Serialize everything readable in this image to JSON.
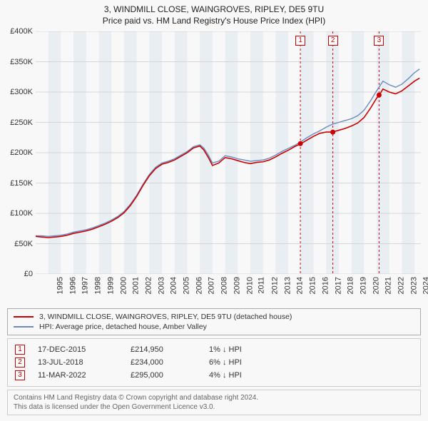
{
  "title_line1": "3, WINDMILL CLOSE, WAINGROVES, RIPLEY, DE5 9TU",
  "title_line2": "Price paid vs. HM Land Registry's House Price Index (HPI)",
  "chart": {
    "type": "line",
    "background_color": "#f8f8f8",
    "grid_color": "#cccccc",
    "band_color": "#d8e2ec",
    "xlim": [
      1995,
      2025.5
    ],
    "ylim": [
      0,
      400000
    ],
    "ytick_step": 50000,
    "ytick_labels": [
      "£0",
      "£50K",
      "£100K",
      "£150K",
      "£200K",
      "£250K",
      "£300K",
      "£350K",
      "£400K"
    ],
    "xticks": [
      1995,
      1996,
      1997,
      1998,
      1999,
      2000,
      2001,
      2002,
      2003,
      2004,
      2005,
      2006,
      2007,
      2008,
      2009,
      2010,
      2011,
      2012,
      2013,
      2014,
      2015,
      2016,
      2017,
      2018,
      2019,
      2020,
      2021,
      2022,
      2023,
      2024,
      2025
    ],
    "series": [
      {
        "name": "hpi",
        "color": "#6a8bc0",
        "width": 1.4,
        "points": [
          [
            1995,
            63000
          ],
          [
            1995.5,
            63000
          ],
          [
            1996,
            62000
          ],
          [
            1996.5,
            63000
          ],
          [
            1997,
            64000
          ],
          [
            1997.5,
            66000
          ],
          [
            1998,
            69000
          ],
          [
            1998.5,
            71000
          ],
          [
            1999,
            73000
          ],
          [
            1999.5,
            76000
          ],
          [
            2000,
            80000
          ],
          [
            2000.5,
            84000
          ],
          [
            2001,
            89000
          ],
          [
            2001.5,
            95000
          ],
          [
            2002,
            103000
          ],
          [
            2002.5,
            115000
          ],
          [
            2003,
            130000
          ],
          [
            2003.5,
            148000
          ],
          [
            2004,
            164000
          ],
          [
            2004.5,
            176000
          ],
          [
            2005,
            183000
          ],
          [
            2005.5,
            186000
          ],
          [
            2006,
            190000
          ],
          [
            2006.5,
            196000
          ],
          [
            2007,
            202000
          ],
          [
            2007.5,
            210000
          ],
          [
            2008,
            213000
          ],
          [
            2008.3,
            208000
          ],
          [
            2008.7,
            195000
          ],
          [
            2009,
            183000
          ],
          [
            2009.5,
            186000
          ],
          [
            2010,
            195000
          ],
          [
            2010.5,
            193000
          ],
          [
            2011,
            190000
          ],
          [
            2011.5,
            188000
          ],
          [
            2012,
            186000
          ],
          [
            2012.5,
            187000
          ],
          [
            2013,
            188000
          ],
          [
            2013.5,
            191000
          ],
          [
            2014,
            196000
          ],
          [
            2014.5,
            202000
          ],
          [
            2015,
            207000
          ],
          [
            2015.5,
            212000
          ],
          [
            2016,
            218000
          ],
          [
            2016.5,
            225000
          ],
          [
            2017,
            231000
          ],
          [
            2017.5,
            236000
          ],
          [
            2018,
            242000
          ],
          [
            2018.5,
            247000
          ],
          [
            2019,
            250000
          ],
          [
            2019.5,
            253000
          ],
          [
            2020,
            256000
          ],
          [
            2020.5,
            261000
          ],
          [
            2021,
            270000
          ],
          [
            2021.5,
            285000
          ],
          [
            2022,
            302000
          ],
          [
            2022.5,
            318000
          ],
          [
            2023,
            312000
          ],
          [
            2023.5,
            308000
          ],
          [
            2024,
            313000
          ],
          [
            2024.5,
            322000
          ],
          [
            2025,
            332000
          ],
          [
            2025.4,
            338000
          ]
        ]
      },
      {
        "name": "property",
        "color": "#cc0000",
        "width": 1.6,
        "points": [
          [
            1995,
            62000
          ],
          [
            1995.5,
            61000
          ],
          [
            1996,
            60000
          ],
          [
            1996.5,
            61000
          ],
          [
            1997,
            62000
          ],
          [
            1997.5,
            64000
          ],
          [
            1998,
            67000
          ],
          [
            1998.5,
            69000
          ],
          [
            1999,
            71000
          ],
          [
            1999.5,
            74000
          ],
          [
            2000,
            78000
          ],
          [
            2000.5,
            82000
          ],
          [
            2001,
            87000
          ],
          [
            2001.5,
            93000
          ],
          [
            2002,
            101000
          ],
          [
            2002.5,
            113000
          ],
          [
            2003,
            128000
          ],
          [
            2003.5,
            146000
          ],
          [
            2004,
            162000
          ],
          [
            2004.5,
            174000
          ],
          [
            2005,
            181000
          ],
          [
            2005.5,
            184000
          ],
          [
            2006,
            188000
          ],
          [
            2006.5,
            194000
          ],
          [
            2007,
            200000
          ],
          [
            2007.5,
            208000
          ],
          [
            2008,
            211000
          ],
          [
            2008.3,
            205000
          ],
          [
            2008.7,
            191000
          ],
          [
            2009,
            179000
          ],
          [
            2009.5,
            183000
          ],
          [
            2010,
            192000
          ],
          [
            2010.5,
            190000
          ],
          [
            2011,
            187000
          ],
          [
            2011.5,
            184000
          ],
          [
            2012,
            182000
          ],
          [
            2012.5,
            184000
          ],
          [
            2013,
            185000
          ],
          [
            2013.5,
            188000
          ],
          [
            2014,
            193000
          ],
          [
            2014.5,
            199000
          ],
          [
            2015,
            204000
          ],
          [
            2015.5,
            210000
          ],
          [
            2016,
            214950
          ],
          [
            2016.5,
            221000
          ],
          [
            2017,
            227000
          ],
          [
            2017.5,
            232000
          ],
          [
            2018,
            234000
          ],
          [
            2018.5,
            234000
          ],
          [
            2019,
            237000
          ],
          [
            2019.5,
            240000
          ],
          [
            2020,
            244000
          ],
          [
            2020.5,
            249000
          ],
          [
            2021,
            258000
          ],
          [
            2021.5,
            273000
          ],
          [
            2022,
            290000
          ],
          [
            2022.2,
            295000
          ],
          [
            2022.5,
            305000
          ],
          [
            2023,
            300000
          ],
          [
            2023.5,
            297000
          ],
          [
            2024,
            302000
          ],
          [
            2024.5,
            310000
          ],
          [
            2025,
            318000
          ],
          [
            2025.4,
            323000
          ]
        ]
      }
    ],
    "sale_markers": [
      {
        "num": "1",
        "x": 2015.96,
        "y": 214950
      },
      {
        "num": "2",
        "x": 2018.53,
        "y": 234000
      },
      {
        "num": "3",
        "x": 2022.19,
        "y": 295000
      }
    ],
    "marker_color": "#cc0000",
    "marker_line_color": "#cc0000",
    "marker_line_dash": "3,3",
    "marker_radius": 3.5
  },
  "legend": {
    "items": [
      {
        "color": "#cc0000",
        "label": "3, WINDMILL CLOSE, WAINGROVES, RIPLEY, DE5 9TU (detached house)"
      },
      {
        "color": "#6a8bc0",
        "label": "HPI: Average price, detached house, Amber Valley"
      }
    ]
  },
  "sales": [
    {
      "num": "1",
      "date": "17-DEC-2015",
      "price": "£214,950",
      "pct": "1% ↓ HPI"
    },
    {
      "num": "2",
      "date": "13-JUL-2018",
      "price": "£234,000",
      "pct": "6% ↓ HPI"
    },
    {
      "num": "3",
      "date": "11-MAR-2022",
      "price": "£295,000",
      "pct": "4% ↓ HPI"
    }
  ],
  "footer_line1": "Contains HM Land Registry data © Crown copyright and database right 2024.",
  "footer_line2": "This data is licensed under the Open Government Licence v3.0."
}
